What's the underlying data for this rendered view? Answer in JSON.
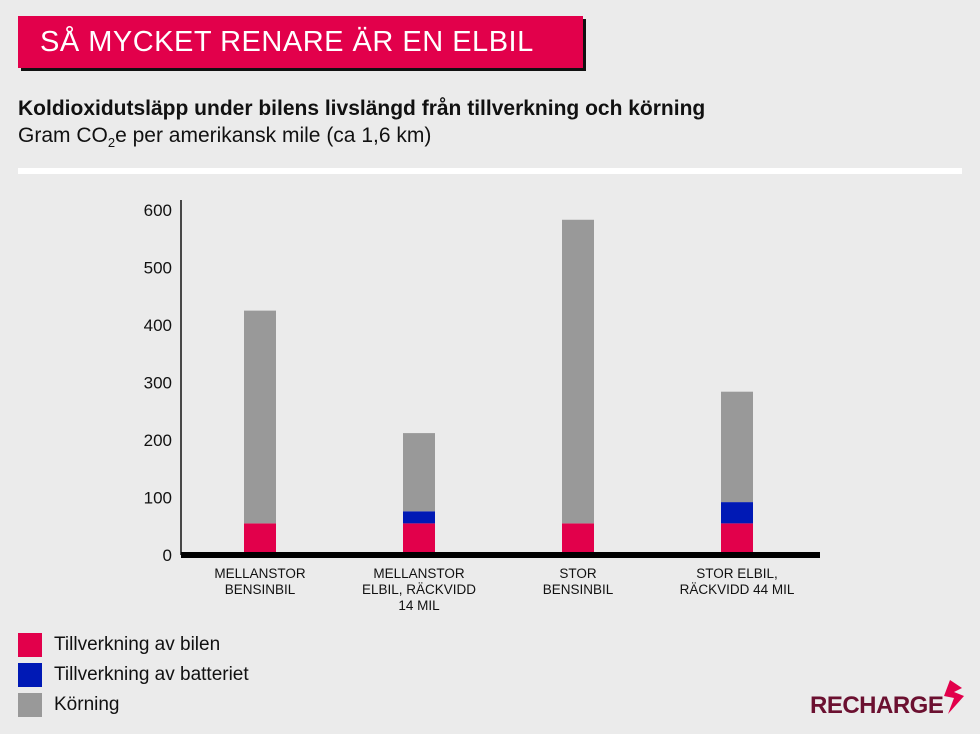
{
  "banner": "SÅ MYCKET RENARE ÄR EN ELBIL",
  "title": "Koldioxidutsläpp under bilens livslängd från tillverkning och körning",
  "subtitle": {
    "pre": "Gram CO",
    "sub": "2",
    "post": "e per amerikansk mile (ca 1,6 km)"
  },
  "logo": "RECHARGE",
  "colors": {
    "car": "#e2004b",
    "battery": "#0019b5",
    "driving": "#999999",
    "background": "#ebebeb",
    "logo": "#6b1030"
  },
  "chart_data": {
    "type": "bar",
    "stacked": true,
    "categories": [
      [
        "MELLANSTOR",
        "BENSINBIL"
      ],
      [
        "MELLANSTOR",
        "ELBIL, RÄCKVIDD",
        "14 MIL"
      ],
      [
        "STOR",
        "BENSINBIL"
      ],
      [
        "STOR ELBIL,",
        "RÄCKVIDD 44 MIL"
      ]
    ],
    "series": [
      {
        "name": "Tillverkning av bilen",
        "color": "#e2004b",
        "values": [
          55,
          55,
          55,
          55
        ]
      },
      {
        "name": "Tillverkning av batteriet",
        "color": "#0019b5",
        "values": [
          0,
          21,
          0,
          37
        ]
      },
      {
        "name": "Körning",
        "color": "#999999",
        "values": [
          370,
          136,
          528,
          192
        ]
      }
    ],
    "yticks": [
      0,
      100,
      200,
      300,
      400,
      500,
      600
    ],
    "ylim": [
      0,
      600
    ],
    "grid": false,
    "legend": "bottom-left"
  }
}
